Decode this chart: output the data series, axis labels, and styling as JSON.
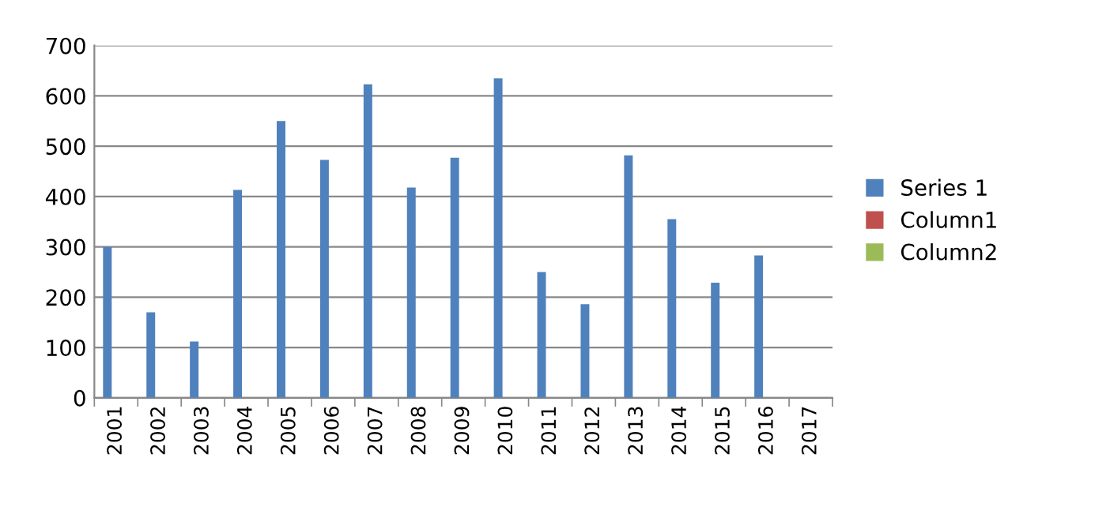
{
  "chart_data": {
    "type": "bar",
    "categories": [
      "2001",
      "2002",
      "2003",
      "2004",
      "2005",
      "2006",
      "2007",
      "2008",
      "2009",
      "2010",
      "2011",
      "2012",
      "2013",
      "2014",
      "2015",
      "2016",
      "2017"
    ],
    "series": [
      {
        "name": "Series 1",
        "color": "#4f81bd",
        "values": [
          300,
          170,
          112,
          413,
          550,
          473,
          623,
          418,
          477,
          635,
          250,
          186,
          482,
          355,
          229,
          283,
          null
        ]
      },
      {
        "name": "Column1",
        "color": "#c0504d",
        "values": [
          null,
          null,
          null,
          null,
          null,
          null,
          null,
          null,
          null,
          null,
          null,
          null,
          null,
          null,
          null,
          null,
          null
        ]
      },
      {
        "name": "Column2",
        "color": "#9bbb59",
        "values": [
          null,
          null,
          null,
          null,
          null,
          null,
          null,
          null,
          null,
          null,
          null,
          null,
          null,
          null,
          null,
          null,
          null
        ]
      }
    ],
    "ylim": [
      0,
      700
    ],
    "yticks": [
      0,
      100,
      200,
      300,
      400,
      500,
      600,
      700
    ],
    "grid": "y",
    "legend": "right"
  }
}
